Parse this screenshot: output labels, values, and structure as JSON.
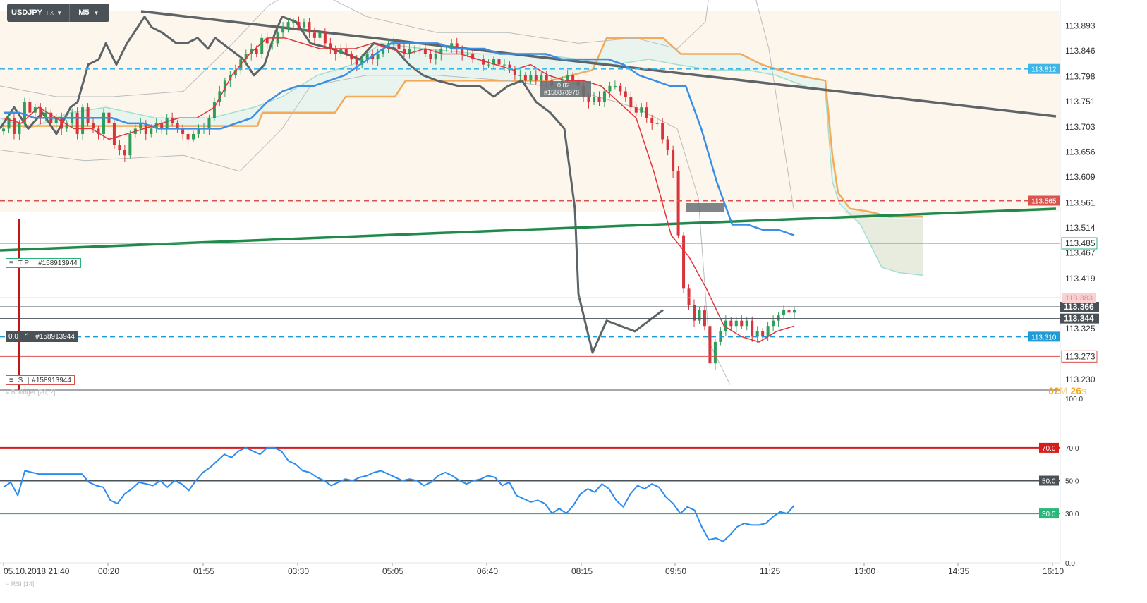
{
  "header": {
    "symbol": "USDJPY",
    "instrument_type": "FX",
    "timeframe": "M5"
  },
  "countdown": {
    "minutes": "02",
    "minutes_unit": "M",
    "seconds": "26",
    "seconds_unit": "s"
  },
  "indicators": {
    "bollinger": "Bollinger",
    "bollinger_params": "[20, 2]",
    "rsi": "RSI [14]"
  },
  "orders": {
    "tp_label": "T P",
    "tp_id": "#158913944",
    "sl_label": "S",
    "sl_id": "#158913944",
    "pos_lots": "0.0",
    "pos_id": "#158913944",
    "pending_lots": "0.02",
    "pending_id": "#158878978"
  },
  "colors": {
    "bull": "#2e9e5a",
    "bear": "#d8343b",
    "kumo_bull": "#d7f3ee",
    "kumo_bear": "#fbe2c6",
    "senkou_a": "#9fe0d0",
    "senkou_b": "#f5aa5a",
    "kijun": "#3a8ee6",
    "tenkan": "#e0353b",
    "chikou": "#5d6468",
    "trend_down": "#5f6468",
    "trend_up": "#1f8a4a",
    "rsi": "#2b8cf0"
  },
  "chart_data": [
    {
      "type": "candlestick",
      "title": "USDJPY M5",
      "ylim": [
        113.21,
        113.92
      ],
      "price_axis_ticks": [
        "113.893",
        "113.846",
        "113.798",
        "113.751",
        "113.703",
        "113.656",
        "113.609",
        "113.561",
        "113.514",
        "113.467",
        "113.419",
        "113.325",
        "113.230"
      ],
      "time_axis_labels": [
        "05.10.2018  21:40",
        "00:20",
        "01:55",
        "03:30",
        "05:05",
        "06:40",
        "08:15",
        "09:50",
        "11:25",
        "13:00",
        "14:35",
        "16:10"
      ],
      "price_markers": [
        {
          "name": "alert_upper",
          "value": 113.812,
          "label": "113.812",
          "color": "#3fb6e8",
          "style": "dashed"
        },
        {
          "name": "alert_red",
          "value": 113.565,
          "label": "113.565",
          "color": "#d9534f",
          "style": "dashed"
        },
        {
          "name": "take_profit",
          "value": 113.485,
          "label": "113.485",
          "color": "#2db37a",
          "style": "solid"
        },
        {
          "name": "ask",
          "value": 113.366,
          "label": "113.366",
          "color": "#4a5258",
          "style": "solid"
        },
        {
          "name": "bid",
          "value": 113.344,
          "label": "113.344",
          "color": "#4a5258",
          "style": "solid"
        },
        {
          "name": "alert_lower",
          "value": 113.31,
          "label": "113.310",
          "color": "#1f9bd8",
          "style": "dashed"
        },
        {
          "name": "stop_loss",
          "value": 113.273,
          "label": "113.273",
          "color": "#d9534f",
          "style": "solid"
        },
        {
          "name": "faded_level",
          "value": 113.383,
          "label": "113.383",
          "color": "#f4c2c2",
          "style": "solid"
        }
      ],
      "trend_lines": [
        {
          "name": "descending",
          "points": [
            [
              0.0,
              113.92
            ],
            [
              1.0,
              113.755
            ]
          ]
        },
        {
          "name": "ascending",
          "points": [
            [
              0.0,
              113.493
            ],
            [
              1.0,
              113.568
            ]
          ]
        }
      ],
      "series": [
        {
          "name": "Close",
          "values": [
            113.7,
            113.72,
            113.69,
            113.71,
            113.75,
            113.73,
            113.74,
            113.72,
            113.73,
            113.71,
            113.72,
            113.7,
            113.71,
            113.73,
            113.69,
            113.74,
            113.71,
            113.7,
            113.69,
            113.73,
            113.71,
            113.67,
            113.66,
            113.65,
            113.69,
            113.7,
            113.71,
            113.69,
            113.7,
            113.71,
            113.7,
            113.72,
            113.71,
            113.7,
            113.69,
            113.68,
            113.69,
            113.7,
            113.7,
            113.72,
            113.75,
            113.77,
            113.79,
            113.8,
            113.81,
            113.83,
            113.84,
            113.85,
            113.84,
            113.87,
            113.86,
            113.86,
            113.88,
            113.89,
            113.9,
            113.9,
            113.89,
            113.9,
            113.88,
            113.87,
            113.88,
            113.86,
            113.85,
            113.84,
            113.85,
            113.84,
            113.83,
            113.82,
            113.83,
            113.84,
            113.83,
            113.84,
            113.85,
            113.86,
            113.86,
            113.85,
            113.84,
            113.85,
            113.85,
            113.85,
            113.84,
            113.83,
            113.84,
            113.85,
            113.85,
            113.86,
            113.85,
            113.84,
            113.84,
            113.83,
            113.83,
            113.82,
            113.82,
            113.83,
            113.82,
            113.82,
            113.81,
            113.8,
            113.8,
            113.79,
            113.8,
            113.79,
            113.8,
            113.79,
            113.78,
            113.78,
            113.79,
            113.8,
            113.79,
            113.78,
            113.76,
            113.75,
            113.76,
            113.75,
            113.77,
            113.78,
            113.78,
            113.77,
            113.76,
            113.74,
            113.73,
            113.74,
            113.72,
            113.71,
            113.71,
            113.68,
            113.66,
            113.62,
            113.5,
            113.4,
            113.37,
            113.34,
            113.36,
            113.33,
            113.26,
            113.3,
            113.32,
            113.34,
            113.33,
            113.34,
            113.33,
            113.34,
            113.31,
            113.32,
            113.31,
            113.33,
            113.34,
            113.35,
            113.36,
            113.355,
            113.36
          ]
        },
        {
          "name": "Kijun",
          "values": [
            113.73,
            113.73,
            113.72,
            113.72,
            113.72,
            113.72,
            113.72,
            113.72,
            113.71,
            113.71,
            113.7,
            113.7,
            113.7,
            113.7,
            113.7,
            113.71,
            113.72,
            113.75,
            113.77,
            113.78,
            113.78,
            113.79,
            113.8,
            113.82,
            113.84,
            113.86,
            113.86,
            113.86,
            113.86,
            113.85,
            113.85,
            113.85,
            113.84,
            113.84,
            113.84,
            113.84,
            113.83,
            113.83,
            113.83,
            113.83,
            113.82,
            113.8,
            113.79,
            113.78,
            113.78,
            113.7,
            113.6,
            113.52,
            113.52,
            113.51,
            113.51,
            113.5
          ]
        },
        {
          "name": "Tenkan",
          "values": [
            113.72,
            113.71,
            113.74,
            113.72,
            113.7,
            113.7,
            113.68,
            113.69,
            113.7,
            113.71,
            113.72,
            113.72,
            113.74,
            113.8,
            113.84,
            113.87,
            113.87,
            113.86,
            113.85,
            113.85,
            113.85,
            113.86,
            113.85,
            113.84,
            113.85,
            113.84,
            113.84,
            113.83,
            113.82,
            113.81,
            113.82,
            113.8,
            113.79,
            113.79,
            113.78,
            113.75,
            113.72,
            113.62,
            113.5,
            113.46,
            113.4,
            113.33,
            113.31,
            113.3,
            113.32,
            113.33
          ]
        }
      ]
    },
    {
      "type": "line",
      "title": "RSI [14]",
      "ylim": [
        0,
        100
      ],
      "levels": [
        {
          "value": 70,
          "label": "70.0",
          "color": "#d71c1c"
        },
        {
          "value": 50,
          "label": "50.0",
          "color": "#4a5258"
        },
        {
          "value": 30,
          "label": "30.0",
          "color": "#2bb67a"
        }
      ],
      "axis_ticks": [
        "100.0",
        "70.0",
        "50.0",
        "30.0",
        "0.0"
      ],
      "series": [
        {
          "name": "RSI",
          "values": [
            46,
            49,
            41,
            56,
            55,
            54,
            54,
            54,
            54,
            54,
            54,
            54,
            49,
            47,
            46,
            38,
            36,
            42,
            45,
            49,
            48,
            47,
            50,
            46,
            50,
            48,
            44,
            50,
            55,
            58,
            62,
            66,
            64,
            68,
            70,
            68,
            66,
            70,
            70,
            68,
            62,
            60,
            56,
            55,
            52,
            50,
            47,
            49,
            51,
            50,
            52,
            53,
            55,
            56,
            54,
            52,
            50,
            51,
            50,
            47,
            49,
            53,
            55,
            53,
            50,
            48,
            50,
            51,
            53,
            52,
            47,
            49,
            41,
            39,
            37,
            38,
            36,
            30,
            33,
            30,
            35,
            42,
            45,
            43,
            48,
            45,
            38,
            34,
            42,
            47,
            45,
            48,
            46,
            40,
            36,
            30,
            34,
            32,
            22,
            14,
            15,
            13,
            17,
            22,
            24,
            23,
            23,
            24,
            28,
            31,
            30,
            35
          ]
        }
      ]
    }
  ]
}
